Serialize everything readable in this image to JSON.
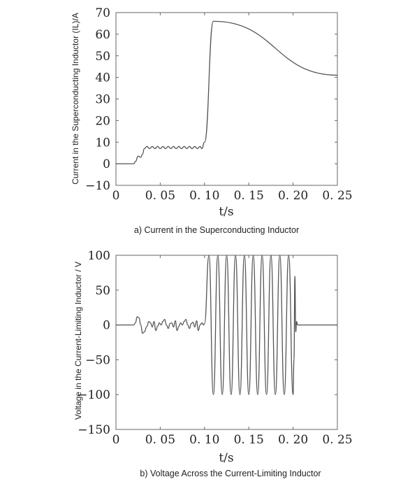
{
  "chart_data": [
    {
      "type": "line",
      "title": "",
      "caption": "a) Current in the Superconducting Inductor",
      "xlabel": "t/s",
      "ylabel": "Current in the Superconducting Inductor (IL)/A",
      "xlim": [
        0,
        0.25
      ],
      "ylim": [
        -10,
        70
      ],
      "xticks": [
        0,
        0.05,
        0.1,
        0.15,
        0.2,
        0.25
      ],
      "xtick_labels": [
        "0",
        "0. 05",
        "0. 10",
        "0. 15",
        "0. 20",
        "0. 25"
      ],
      "yticks": [
        -10,
        0,
        10,
        20,
        30,
        40,
        50,
        60,
        70
      ],
      "ytick_labels": [
        "−10",
        "0",
        "10",
        "20",
        "30",
        "40",
        "50",
        "60",
        "70"
      ],
      "grid": false,
      "series": [
        {
          "name": "",
          "x": [
            0,
            0.02,
            0.022,
            0.025,
            0.028,
            0.03,
            0.032,
            0.035,
            0.038,
            0.041,
            0.044,
            0.047,
            0.05,
            0.053,
            0.056,
            0.059,
            0.062,
            0.065,
            0.068,
            0.071,
            0.074,
            0.077,
            0.08,
            0.083,
            0.086,
            0.089,
            0.092,
            0.095,
            0.097,
            0.1,
            0.11,
            0.25
          ],
          "y": [
            0,
            0,
            1,
            3.5,
            3,
            4.5,
            7,
            8,
            7,
            8,
            7,
            8,
            7,
            8,
            7,
            8,
            7,
            8,
            7,
            8,
            7,
            8,
            7,
            8,
            7,
            8,
            7,
            8,
            7,
            10,
            66,
            41
          ]
        }
      ]
    },
    {
      "type": "line",
      "title": "",
      "caption": "b) Voltage Across the Current-Limiting Inductor",
      "xlabel": "t/s",
      "ylabel": "Voltage in the Current-Limiting Inductor / V",
      "xlim": [
        0,
        0.25
      ],
      "ylim": [
        -150,
        100
      ],
      "xticks": [
        0,
        0.05,
        0.1,
        0.15,
        0.2,
        0.25
      ],
      "xtick_labels": [
        "0",
        "0. 05",
        "0. 10",
        "0. 15",
        "0. 20",
        "0. 25"
      ],
      "yticks": [
        -150,
        -100,
        -50,
        0,
        50,
        100
      ],
      "ytick_labels": [
        "−150",
        "−100",
        "−50",
        "0",
        "50",
        "100"
      ],
      "grid": false,
      "series": [
        {
          "name": "",
          "x": [
            0,
            0.02,
            0.022,
            0.024,
            0.026,
            0.028,
            0.03,
            0.032,
            0.035,
            0.037,
            0.039,
            0.041,
            0.043,
            0.045,
            0.047,
            0.049,
            0.051,
            0.053,
            0.055,
            0.057,
            0.059,
            0.061,
            0.063,
            0.065,
            0.067,
            0.069,
            0.071,
            0.073,
            0.075,
            0.077,
            0.079,
            0.081,
            0.083,
            0.085,
            0.087,
            0.089,
            0.091,
            0.093,
            0.095,
            0.097,
            0.099,
            0.1,
            0.105,
            0.11,
            0.115,
            0.12,
            0.125,
            0.13,
            0.135,
            0.14,
            0.145,
            0.15,
            0.155,
            0.16,
            0.165,
            0.17,
            0.175,
            0.18,
            0.185,
            0.19,
            0.195,
            0.2,
            0.201,
            0.202,
            0.203,
            0.204,
            0.205,
            0.25
          ],
          "y": [
            0,
            0,
            3,
            12,
            10,
            0,
            -12,
            -10,
            -2,
            5,
            3,
            -3,
            5,
            -8,
            -2,
            3,
            0,
            5,
            8,
            0,
            -5,
            2,
            3,
            -3,
            6,
            -8,
            -2,
            3,
            0,
            5,
            8,
            0,
            -5,
            2,
            4,
            -3,
            6,
            -8,
            0,
            3,
            0,
            2,
            100,
            -100,
            100,
            -100,
            100,
            -100,
            100,
            -100,
            100,
            -100,
            100,
            -100,
            100,
            -100,
            100,
            -100,
            100,
            -100,
            100,
            -100,
            -50,
            70,
            -10,
            5,
            0,
            0
          ]
        }
      ]
    }
  ]
}
